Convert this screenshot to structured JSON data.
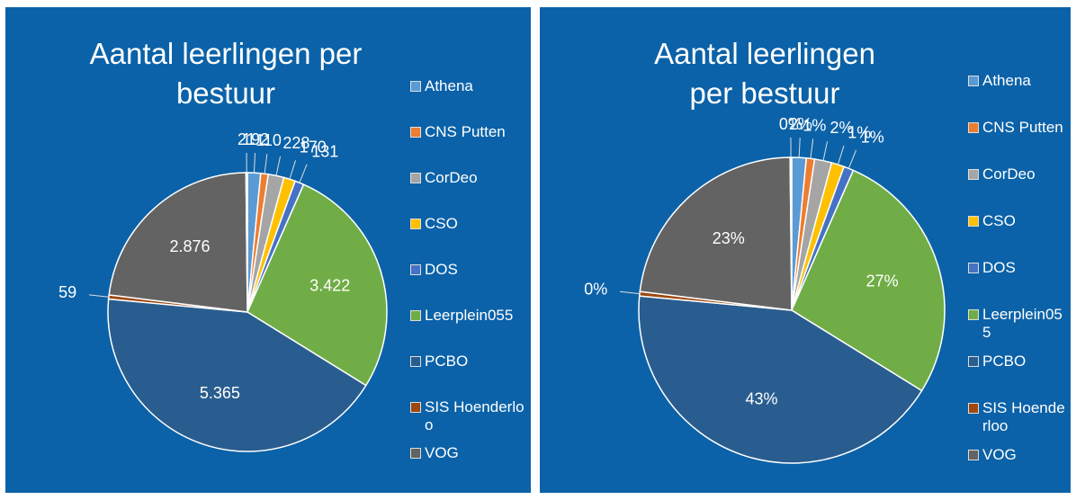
{
  "chart_data": [
    {
      "type": "pie",
      "title": "Aantal leerlingen per bestuur",
      "categories": [
        "Athena",
        "CNS Putten",
        "CorDeo",
        "CSO",
        "DOS",
        "Leerplein055",
        "PCBO",
        "SIS Hoenderloo",
        "VOG",
        null
      ],
      "values": [
        192,
        110,
        228,
        170,
        131,
        3422,
        5365,
        59,
        2876,
        21
      ],
      "value_labels": [
        "192",
        "110",
        "228",
        "170",
        "131",
        "3.422",
        "5.365",
        "59",
        "2.876",
        "21"
      ],
      "colors": [
        "#5b9bd5",
        "#ed7d31",
        "#a5a5a5",
        "#ffc000",
        "#4472c4",
        "#70ad47",
        "#2a5d8f",
        "#9e480e",
        "#636363",
        "#f2f2f2"
      ]
    },
    {
      "type": "pie",
      "title": "Aantal leerlingen per bestuur",
      "categories": [
        "Athena",
        "CNS Putten",
        "CorDeo",
        "CSO",
        "DOS",
        "Leerplein055",
        "PCBO",
        "SIS Hoenderloo",
        "VOG",
        null
      ],
      "values": [
        1.53,
        0.87,
        1.81,
        1.35,
        1.04,
        27.22,
        42.67,
        0.47,
        22.87,
        0.17
      ],
      "value_labels": [
        "2%",
        "1%",
        "2%",
        "1%",
        "1%",
        "27%",
        "43%",
        "0%",
        "23%",
        "0%"
      ],
      "colors": [
        "#5b9bd5",
        "#ed7d31",
        "#a5a5a5",
        "#ffc000",
        "#4472c4",
        "#70ad47",
        "#2a5d8f",
        "#9e480e",
        "#636363",
        "#f2f2f2"
      ]
    }
  ]
}
